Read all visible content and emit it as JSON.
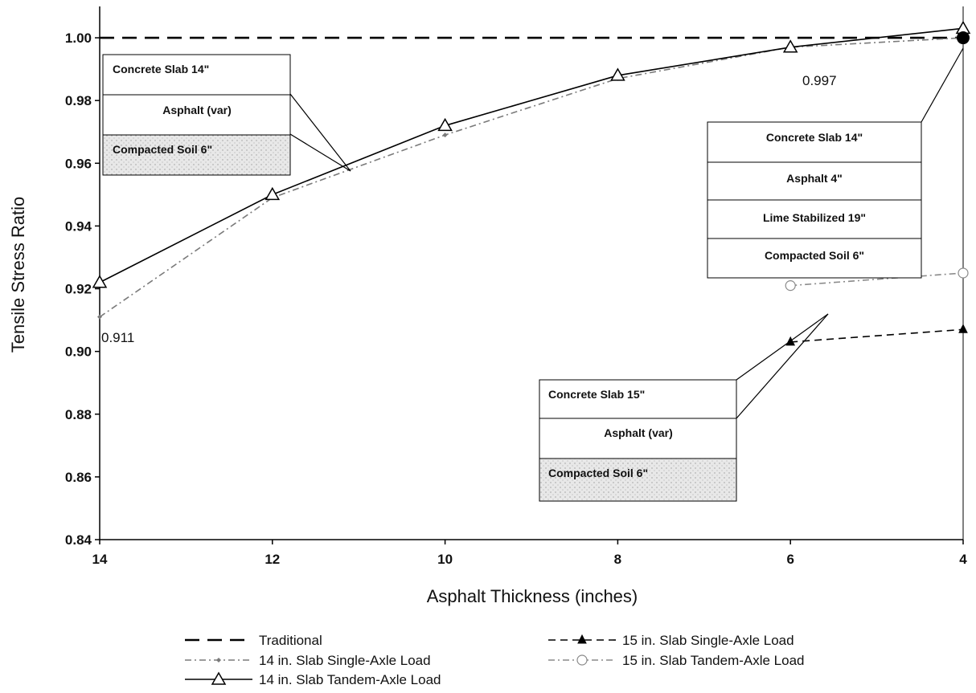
{
  "chart_data": {
    "type": "line",
    "title": "",
    "xlabel": "Asphalt Thickness (inches)",
    "ylabel": "Tensile Stress Ratio",
    "x_reversed": true,
    "xlim": [
      14,
      4
    ],
    "ylim": [
      0.84,
      1.01
    ],
    "x_ticks": [
      "14",
      "12",
      "10",
      "8",
      "6",
      "4"
    ],
    "y_ticks": [
      "0.84",
      "0.86",
      "0.88",
      "0.90",
      "0.92",
      "0.94",
      "0.96",
      "0.98",
      "1.00"
    ],
    "grid": false,
    "legend_position": "bottom",
    "series": [
      {
        "name": "Traditional",
        "color": "#000000",
        "dash": "long-dash",
        "marker": "none",
        "x": [
          14,
          4
        ],
        "y": [
          1.0,
          1.0
        ]
      },
      {
        "name": "14 in. Slab Single-Axle Load",
        "color": "#7a7a7a",
        "dash": "dash-dot",
        "marker": "small-diamond",
        "x": [
          14,
          12,
          10,
          8,
          6,
          4
        ],
        "y": [
          0.911,
          0.949,
          0.969,
          0.987,
          0.997,
          1.0
        ]
      },
      {
        "name": "14 in. Slab Tandem-Axle Load",
        "color": "#000000",
        "dash": "solid",
        "marker": "open-triangle",
        "x": [
          14,
          12,
          10,
          8,
          6,
          4
        ],
        "y": [
          0.922,
          0.95,
          0.972,
          0.988,
          0.997,
          1.003
        ]
      },
      {
        "name": "15 in. Slab Single-Axle Load",
        "color": "#000000",
        "dash": "dash",
        "marker": "filled-triangle",
        "x": [
          6,
          4
        ],
        "y": [
          0.903,
          0.907
        ]
      },
      {
        "name": "15 in. Slab Tandem-Axle Load",
        "color": "#8a8a8a",
        "dash": "dash-dot",
        "marker": "open-circle",
        "x": [
          6,
          4
        ],
        "y": [
          0.921,
          0.925
        ]
      }
    ],
    "data_labels": [
      {
        "text": "0.911"
      },
      {
        "text": "0.997"
      }
    ],
    "annotations": [
      {
        "layers": [
          "Concrete Slab 14\"",
          "Asphalt  (var)",
          "Compacted Soil 6\""
        ]
      },
      {
        "layers": [
          "Concrete Slab 14\"",
          "Asphalt 4\"",
          "Lime Stabilized 19\"",
          "Compacted Soil 6\""
        ]
      },
      {
        "layers": [
          "Concrete Slab 15\"",
          "Asphalt  (var)",
          "Compacted Soil 6\""
        ]
      }
    ]
  }
}
